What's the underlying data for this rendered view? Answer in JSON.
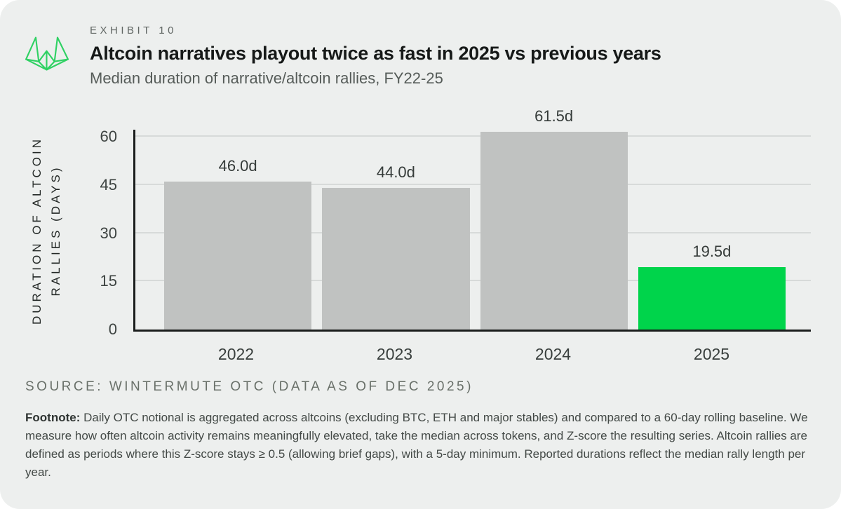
{
  "header": {
    "exhibit_label": "EXHIBIT 10"
  },
  "chart_data": {
    "type": "bar",
    "title": "Altcoin narratives playout twice as fast in 2025 vs previous years",
    "subtitle": "Median duration of narrative/altcoin rallies, FY22-25",
    "categories": [
      "2022",
      "2023",
      "2024",
      "2025"
    ],
    "values": [
      46.0,
      44.0,
      61.5,
      19.5
    ],
    "value_labels": [
      "46.0d",
      "44.0d",
      "61.5d",
      "19.5d"
    ],
    "unit": "days",
    "ylabel_lines": [
      "DURATION OF ALTCOIN",
      "RALLIES (DAYS)"
    ],
    "yticks": [
      0,
      15,
      30,
      45,
      60
    ],
    "ylim": [
      0,
      62.2
    ],
    "grid": "horizontal",
    "legend": "none",
    "bar_colors": [
      "#c0c2c1",
      "#c0c2c1",
      "#c0c2c1",
      "#00d44b"
    ],
    "default_bar_color": "#c0c2c1",
    "highlight_color": "#00d44b",
    "highlight_category": "2025"
  },
  "source_line": "SOURCE: WINTERMUTE OTC (DATA AS OF DEC 2025)",
  "footnote": {
    "label": "Footnote:",
    "text": " Daily OTC notional is aggregated across altcoins (excluding BTC, ETH and major stables) and compared to a 60-day rolling baseline. We measure how often altcoin activity remains meaningfully elevated, take the median across tokens, and Z-score the resulting series. Altcoin rallies are defined as periods where this Z-score stays ≥ 0.5 (allowing brief gaps), with a 5-day minimum. Reported durations reflect the median rally length per year."
  },
  "logo": {
    "color": "#2fd163"
  }
}
